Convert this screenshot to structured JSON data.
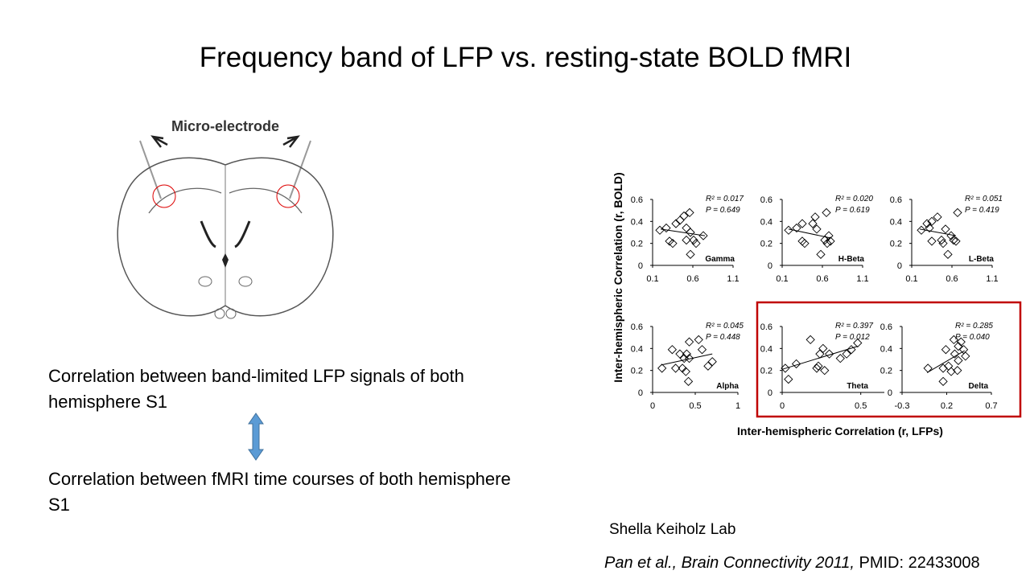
{
  "title": "Frequency band of LFP vs. resting-state BOLD fMRI",
  "diagram_label": "Micro-electrode",
  "text_top": "Correlation between band-limited LFP signals of both hemisphere S1",
  "text_bottom": "Correlation between fMRI time courses of both hemisphere S1",
  "lab": "Shella Keiholz Lab",
  "citation": {
    "source": "Pan et al., Brain Connectivity 2011,",
    "pmid": "PMID: 22433008"
  },
  "y_label": "Inter-hemispheric Correlation (r, BOLD)",
  "x_label": "Inter-hemispheric Correlation (r, LFPs)",
  "chart_data": [
    {
      "type": "scatter",
      "label": "Gamma",
      "annotations": [
        "R² = 0.017",
        "P = 0.649"
      ],
      "x": [
        0.19,
        0.27,
        0.31,
        0.35,
        0.39,
        0.44,
        0.49,
        0.56,
        0.52,
        0.52,
        0.57,
        0.61,
        0.64,
        0.73,
        0.57
      ],
      "values": [
        0.32,
        0.34,
        0.22,
        0.2,
        0.38,
        0.41,
        0.45,
        0.48,
        0.34,
        0.23,
        0.1,
        0.23,
        0.2,
        0.27,
        0.3
      ],
      "fit": {
        "x": [
          0.2,
          0.75
        ],
        "values": [
          0.33,
          0.27
        ]
      },
      "xlim": [
        0.1,
        1.1
      ],
      "xticks": [
        0.1,
        0.6,
        1.1
      ],
      "ylim": [
        0,
        0.6
      ],
      "yticks": [
        0,
        0.2,
        0.4,
        0.6
      ]
    },
    {
      "type": "scatter",
      "label": "H-Beta",
      "annotations": [
        "R² = 0.020",
        "P = 0.619"
      ],
      "x": [
        0.18,
        0.28,
        0.35,
        0.35,
        0.38,
        0.48,
        0.51,
        0.53,
        0.58,
        0.63,
        0.65,
        0.68,
        0.7,
        0.66
      ],
      "values": [
        0.32,
        0.34,
        0.38,
        0.22,
        0.2,
        0.38,
        0.44,
        0.33,
        0.1,
        0.23,
        0.48,
        0.27,
        0.22,
        0.2
      ],
      "fit": {
        "x": [
          0.18,
          0.7
        ],
        "values": [
          0.33,
          0.25
        ]
      },
      "xlim": [
        0.1,
        1.1
      ],
      "xticks": [
        0.1,
        0.6,
        1.1
      ],
      "ylim": [
        0,
        0.6
      ],
      "yticks": [
        0,
        0.2,
        0.4,
        0.6
      ]
    },
    {
      "type": "scatter",
      "label": "L-Beta",
      "annotations": [
        "R² = 0.051",
        "P = 0.419"
      ],
      "x": [
        0.22,
        0.29,
        0.32,
        0.35,
        0.35,
        0.42,
        0.47,
        0.49,
        0.55,
        0.59,
        0.62,
        0.65,
        0.67,
        0.52
      ],
      "values": [
        0.32,
        0.38,
        0.34,
        0.4,
        0.22,
        0.44,
        0.23,
        0.2,
        0.1,
        0.27,
        0.23,
        0.22,
        0.48,
        0.33
      ],
      "fit": {
        "x": [
          0.2,
          0.65
        ],
        "values": [
          0.33,
          0.27
        ]
      },
      "xlim": [
        0.1,
        1.1
      ],
      "xticks": [
        0.1,
        0.6,
        1.1
      ],
      "ylim": [
        0,
        0.6
      ],
      "yticks": [
        0,
        0.2,
        0.4,
        0.6
      ]
    },
    {
      "type": "scatter",
      "label": "Alpha",
      "annotations": [
        "R² = 0.045",
        "P = 0.448"
      ],
      "x": [
        0.11,
        0.23,
        0.27,
        0.32,
        0.35,
        0.37,
        0.39,
        0.4,
        0.42,
        0.43,
        0.43,
        0.54,
        0.58,
        0.65,
        0.7
      ],
      "values": [
        0.22,
        0.39,
        0.22,
        0.35,
        0.22,
        0.31,
        0.19,
        0.35,
        0.1,
        0.46,
        0.31,
        0.48,
        0.39,
        0.24,
        0.28
      ],
      "fit": {
        "x": [
          0.1,
          0.7
        ],
        "values": [
          0.25,
          0.35
        ]
      },
      "xlim": [
        0,
        1
      ],
      "xticks": [
        0,
        0.5,
        1
      ],
      "ylim": [
        0,
        0.6
      ],
      "yticks": [
        0,
        0.2,
        0.4,
        0.6
      ]
    },
    {
      "type": "scatter",
      "label": "Theta",
      "annotations": [
        "R² = 0.397",
        "P = 0.012"
      ],
      "x": [
        0.02,
        0.04,
        0.09,
        0.18,
        0.22,
        0.23,
        0.24,
        0.26,
        0.27,
        0.3,
        0.37,
        0.41,
        0.44,
        0.48
      ],
      "values": [
        0.22,
        0.12,
        0.26,
        0.48,
        0.22,
        0.24,
        0.35,
        0.4,
        0.2,
        0.35,
        0.31,
        0.35,
        0.39,
        0.45
      ],
      "fit": {
        "x": [
          0,
          0.48
        ],
        "values": [
          0.21,
          0.42
        ]
      },
      "xlim": [
        0,
        0.65
      ],
      "xticks": [
        0,
        0.5
      ],
      "ylim": [
        0,
        0.6
      ],
      "yticks": [
        0,
        0.2,
        0.4,
        0.6
      ]
    },
    {
      "type": "scatter",
      "label": "Delta",
      "annotations": [
        "R² = 0.285",
        "P = 0.040"
      ],
      "x": [
        -0.01,
        0.16,
        0.16,
        0.19,
        0.22,
        0.25,
        0.28,
        0.29,
        0.32,
        0.33,
        0.36,
        0.39,
        0.41,
        0.33
      ],
      "values": [
        0.22,
        0.22,
        0.1,
        0.39,
        0.24,
        0.19,
        0.48,
        0.35,
        0.2,
        0.42,
        0.46,
        0.39,
        0.33,
        0.29
      ],
      "fit": {
        "x": [
          -0.02,
          0.4
        ],
        "values": [
          0.18,
          0.38
        ]
      },
      "xlim": [
        -0.3,
        0.7
      ],
      "xticks": [
        -0.3,
        0.2,
        0.7
      ],
      "ylim": [
        0,
        0.6
      ],
      "yticks": [
        0,
        0.2,
        0.4,
        0.6
      ]
    }
  ]
}
